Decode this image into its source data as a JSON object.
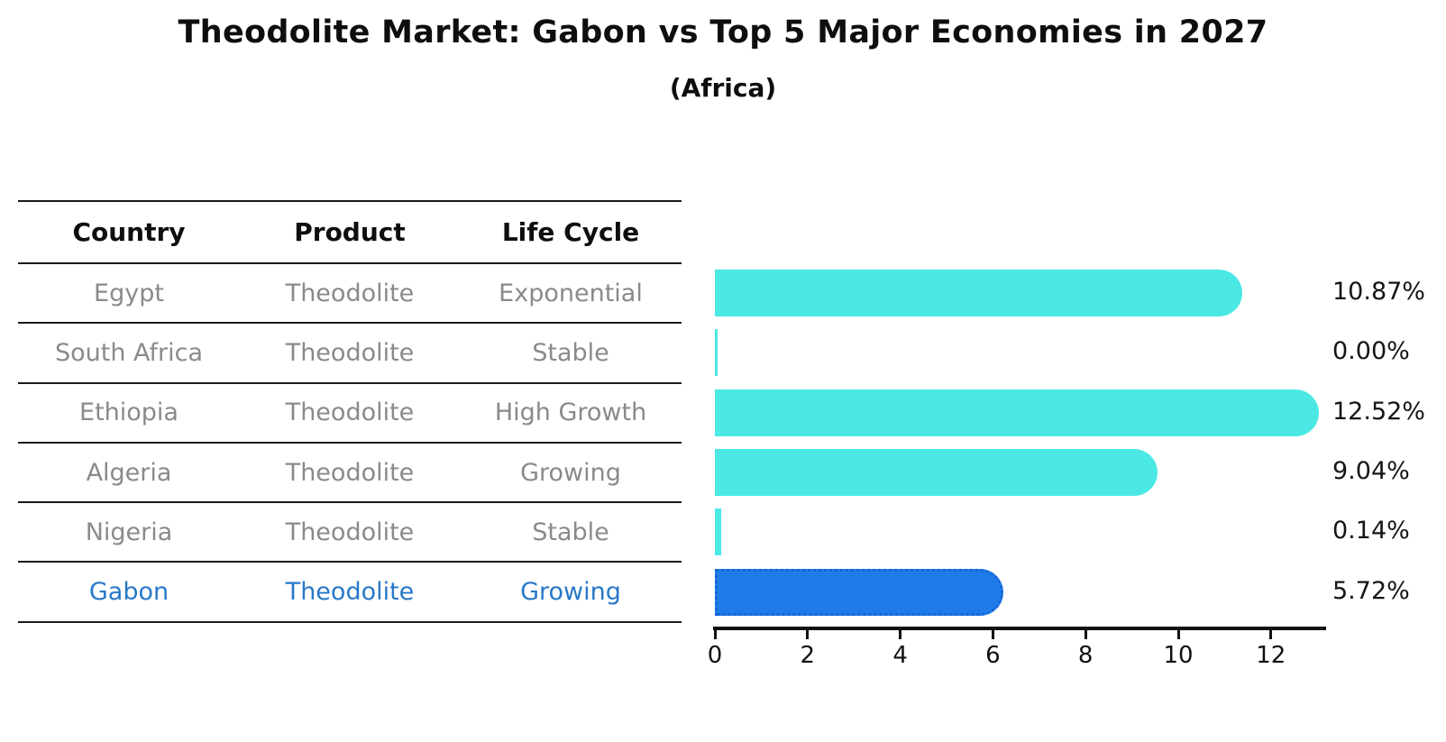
{
  "title": "Theodolite Market: Gabon vs Top 5 Major Economies in 2027",
  "subtitle": "(Africa)",
  "table": {
    "headers": [
      "Country",
      "Product",
      "Life Cycle"
    ],
    "rows": [
      {
        "country": "Egypt",
        "product": "Theodolite",
        "life_cycle": "Exponential",
        "highlight": false
      },
      {
        "country": "South Africa",
        "product": "Theodolite",
        "life_cycle": "Stable",
        "highlight": false
      },
      {
        "country": "Ethiopia",
        "product": "Theodolite",
        "life_cycle": "High Growth",
        "highlight": false
      },
      {
        "country": "Algeria",
        "product": "Theodolite",
        "life_cycle": "Growing",
        "highlight": false
      },
      {
        "country": "Nigeria",
        "product": "Theodolite",
        "life_cycle": "Stable",
        "highlight": true,
        "_note": ""
      },
      {
        "country": "Gabon",
        "product": "Theodolite",
        "life_cycle": "Growing",
        "highlight": true
      }
    ]
  },
  "chart_data": {
    "type": "bar",
    "orientation": "horizontal",
    "title": "Theodolite Market: Gabon vs Top 5 Major Economies in 2027 (Africa)",
    "categories": [
      "Egypt",
      "South Africa",
      "Ethiopia",
      "Algeria",
      "Nigeria",
      "Gabon"
    ],
    "values": [
      10.87,
      0.0,
      12.52,
      9.04,
      0.14,
      5.72
    ],
    "value_labels": [
      "10.87%",
      "0.00%",
      "12.52%",
      "9.04%",
      "0.14%",
      "5.72%"
    ],
    "x_ticks": [
      0,
      2,
      4,
      6,
      8,
      10,
      12
    ],
    "xlim": [
      0,
      13.2
    ],
    "grid": false,
    "legend": false,
    "bar_color": "#4be8e4",
    "highlight_color": "#1e7be8",
    "highlight_index": 5
  }
}
